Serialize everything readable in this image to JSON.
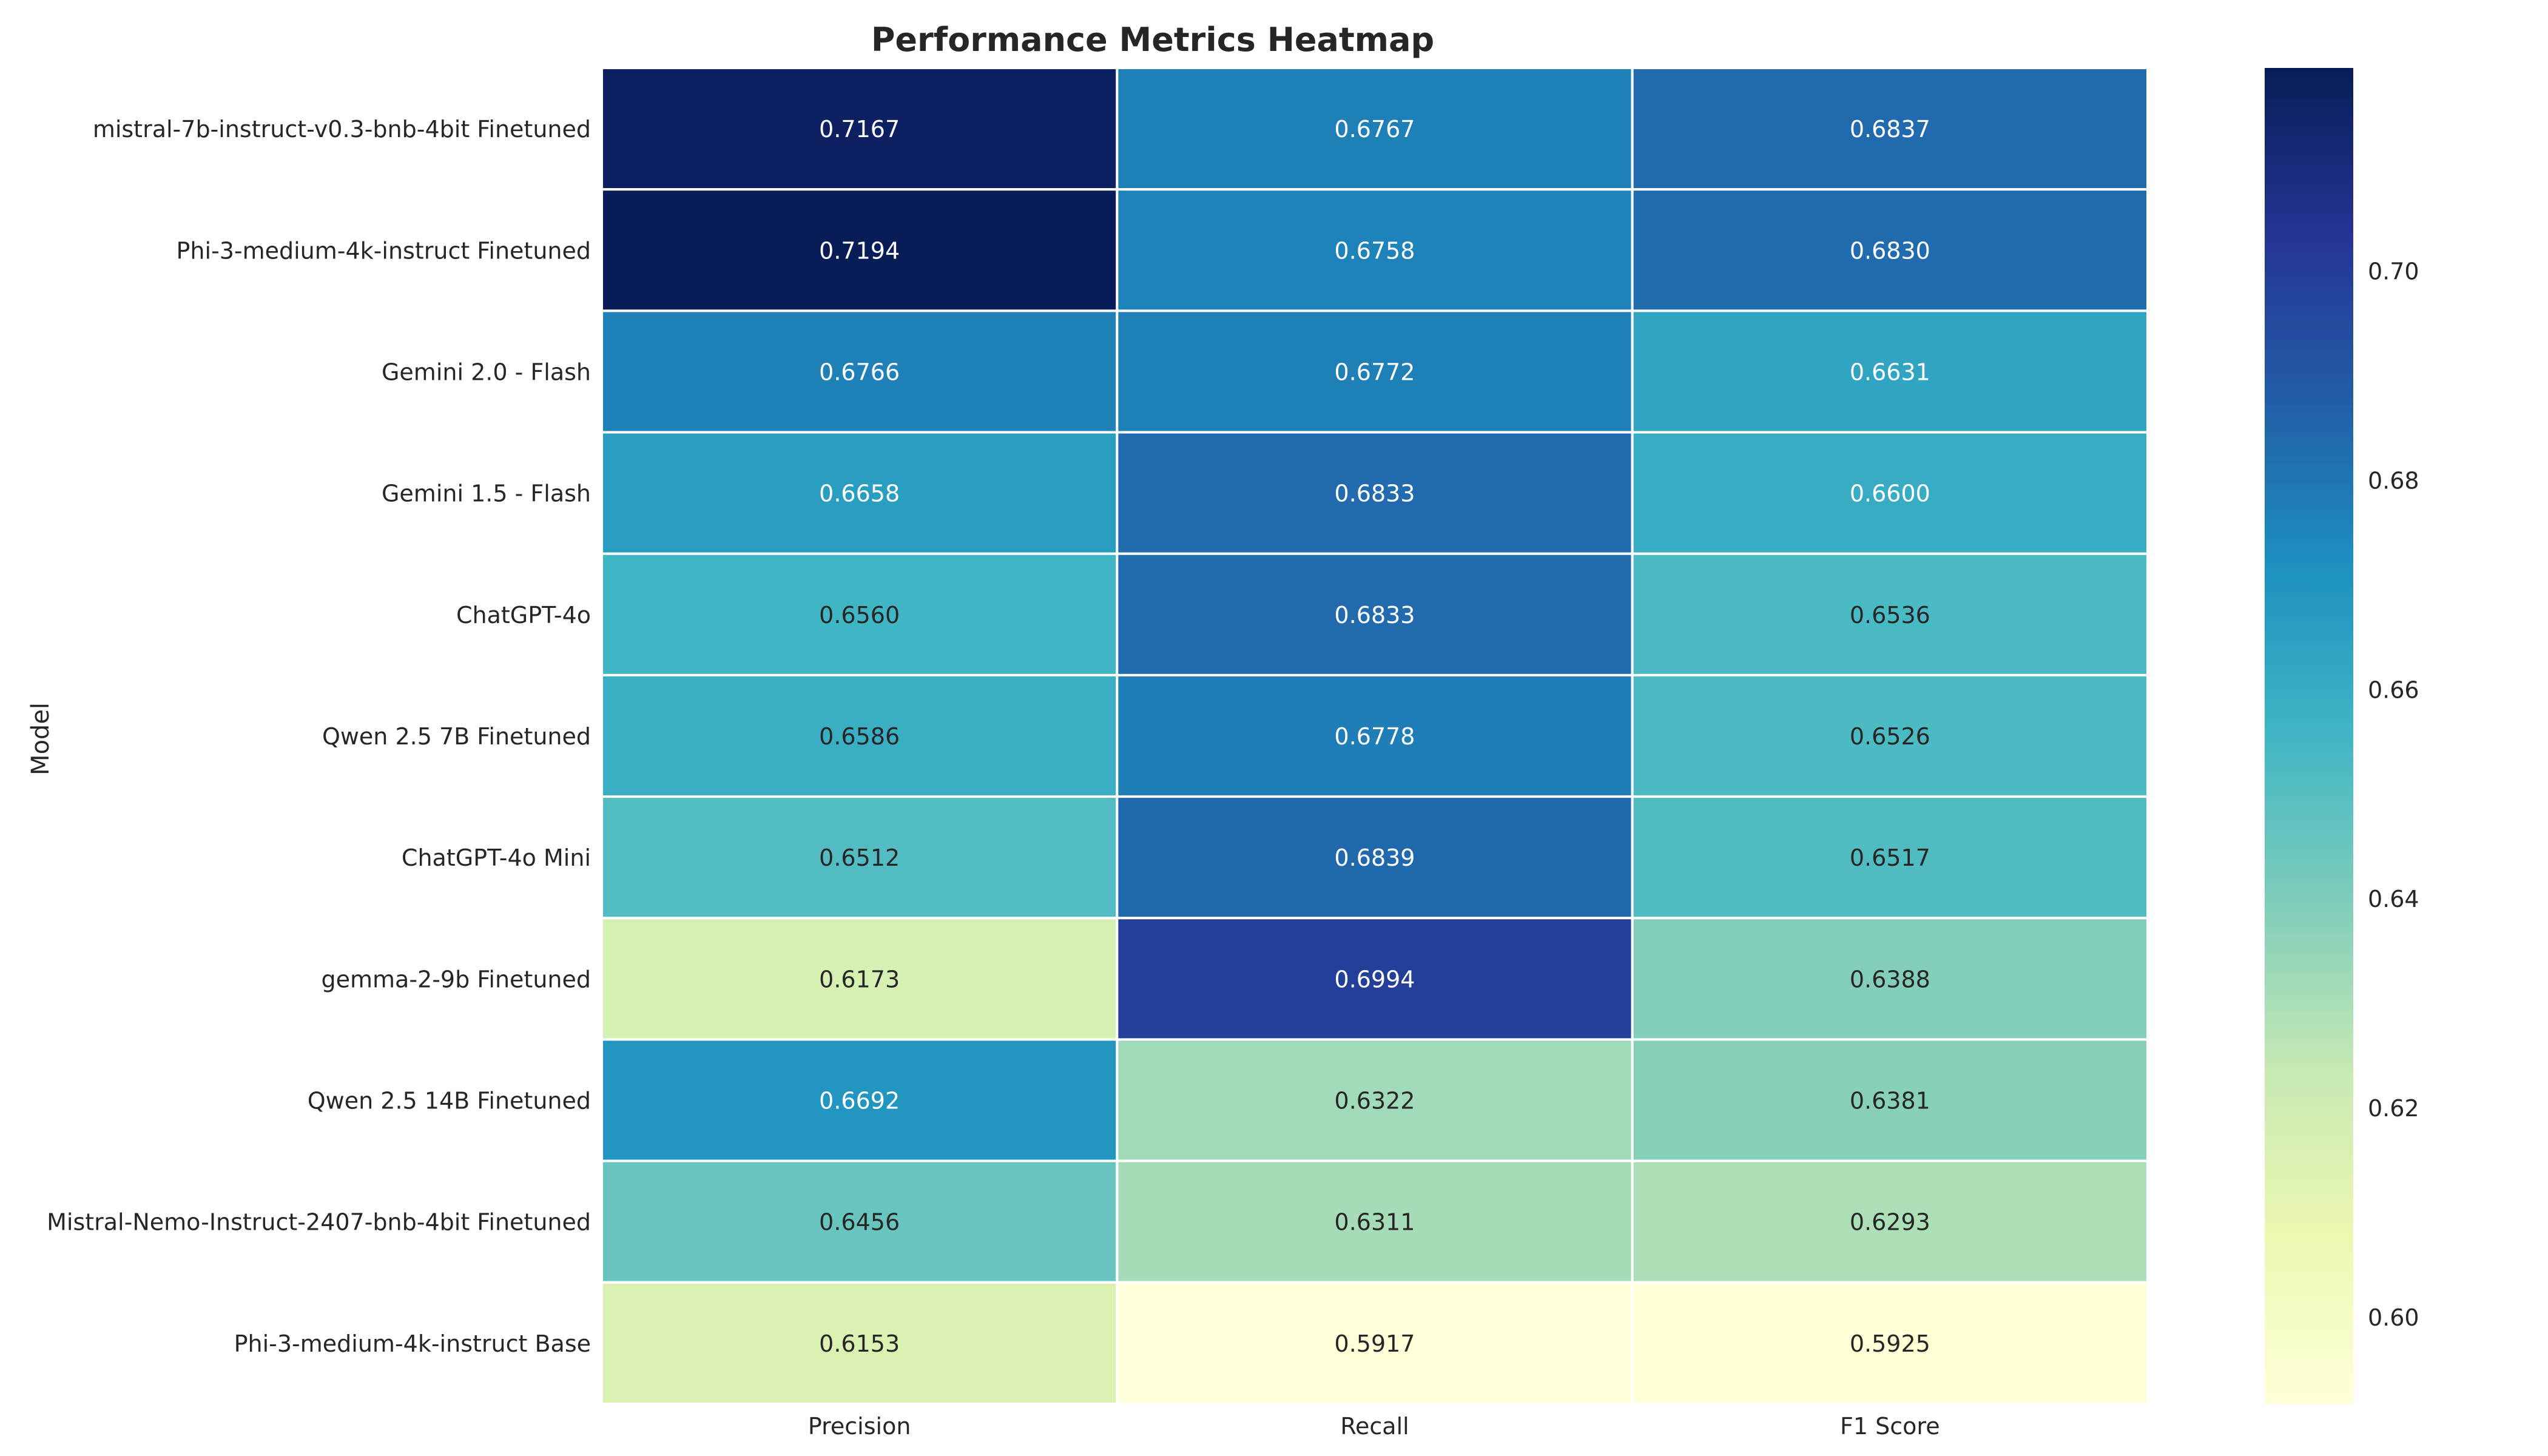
{
  "chart_data": {
    "type": "heatmap",
    "title": "Performance Metrics Heatmap",
    "xlabel": "",
    "ylabel": "Model",
    "columns": [
      "Precision",
      "Recall",
      "F1 Score"
    ],
    "rows": [
      "mistral-7b-instruct-v0.3-bnb-4bit Finetuned",
      "Phi-3-medium-4k-instruct Finetuned",
      "Gemini 2.0 - Flash",
      "Gemini 1.5 - Flash",
      "ChatGPT-4o",
      "Qwen 2.5 7B Finetuned",
      "ChatGPT-4o Mini",
      "gemma-2-9b Finetuned",
      "Qwen 2.5 14B Finetuned",
      "Mistral-Nemo-Instruct-2407-bnb-4bit Finetuned",
      "Phi-3-medium-4k-instruct Base"
    ],
    "values": [
      [
        0.7167,
        0.6767,
        0.6837
      ],
      [
        0.7194,
        0.6758,
        0.683
      ],
      [
        0.6766,
        0.6772,
        0.6631
      ],
      [
        0.6658,
        0.6833,
        0.66
      ],
      [
        0.656,
        0.6833,
        0.6536
      ],
      [
        0.6586,
        0.6778,
        0.6526
      ],
      [
        0.6512,
        0.6839,
        0.6517
      ],
      [
        0.6173,
        0.6994,
        0.6388
      ],
      [
        0.6692,
        0.6322,
        0.6381
      ],
      [
        0.6456,
        0.6311,
        0.6293
      ],
      [
        0.6153,
        0.5917,
        0.5925
      ]
    ],
    "labels": [
      [
        "0.7167",
        "0.6767",
        "0.6837"
      ],
      [
        "0.7194",
        "0.6758",
        "0.6830"
      ],
      [
        "0.6766",
        "0.6772",
        "0.6631"
      ],
      [
        "0.6658",
        "0.6833",
        "0.6600"
      ],
      [
        "0.6560",
        "0.6833",
        "0.6536"
      ],
      [
        "0.6586",
        "0.6778",
        "0.6526"
      ],
      [
        "0.6512",
        "0.6839",
        "0.6517"
      ],
      [
        "0.6173",
        "0.6994",
        "0.6388"
      ],
      [
        "0.6692",
        "0.6322",
        "0.6381"
      ],
      [
        "0.6456",
        "0.6311",
        "0.6293"
      ],
      [
        "0.6153",
        "0.5917",
        "0.5925"
      ]
    ],
    "colormap": "YlGnBu",
    "vmin": 0.5917,
    "vmax": 0.7194,
    "colorbar": {
      "ticks": [
        0.6,
        0.62,
        0.64,
        0.66,
        0.68,
        0.7
      ],
      "tick_labels": [
        "0.60",
        "0.62",
        "0.64",
        "0.66",
        "0.68",
        "0.70"
      ]
    },
    "grid": false
  }
}
